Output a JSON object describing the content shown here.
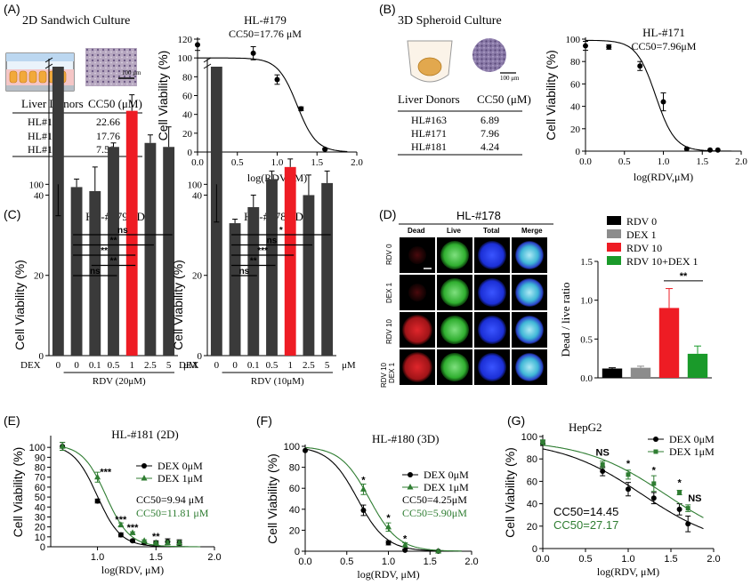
{
  "panel_labels": [
    "(A)",
    "(B)",
    "(C)",
    "(D)",
    "(E)",
    "(F)",
    "(G)"
  ],
  "panelA": {
    "title": "2D Sandwich Culture",
    "scale_label": "100 μm",
    "table": {
      "headers": [
        "Liver Donors",
        "CC50 (μM)"
      ],
      "rows": [
        [
          "HL#178",
          "22.66"
        ],
        [
          "HL#179",
          "17.76"
        ],
        [
          "HL#180",
          "7.50"
        ]
      ]
    }
  },
  "panelB": {
    "title": "3D Spheroid Culture",
    "scale_label": "100 μm",
    "table": {
      "headers": [
        "Liver Donors",
        "CC50 (μM)"
      ],
      "rows": [
        [
          "HL#163",
          "6.89"
        ],
        [
          "HL#171",
          "7.96"
        ],
        [
          "HL#181",
          "4.24"
        ]
      ]
    }
  },
  "panelD": {
    "title": "HL-#178",
    "col_headers": [
      "Dead",
      "Live",
      "Total",
      "Merge"
    ],
    "row_labels": [
      "RDV 0",
      "DEX 1",
      "RDV 10",
      "RDV 10\nDEX 1"
    ]
  },
  "chart_data": [
    {
      "id": "A",
      "type": "scatter",
      "title": "HL-#179",
      "subtitle": "CC50=17.76 μM",
      "xlabel": "log(RDV,μM)",
      "ylabel": "Cell Viability (%)",
      "xlim": [
        0,
        2
      ],
      "ylim": [
        0,
        120
      ],
      "xticks": [
        "0.0",
        "0.5",
        "1.0",
        "1.5",
        "2.0"
      ],
      "yticks": [
        "0",
        "20",
        "40",
        "60",
        "80",
        "100",
        "120"
      ],
      "points": [
        [
          0,
          114,
          6
        ],
        [
          0.7,
          105,
          7
        ],
        [
          1.0,
          77,
          5
        ],
        [
          1.3,
          46,
          2
        ],
        [
          1.6,
          3,
          1
        ]
      ],
      "fit": {
        "top": 100,
        "bottom": 0,
        "logec50": 1.249,
        "hill": 3.6
      },
      "colors": [
        "#000000"
      ]
    },
    {
      "id": "B",
      "type": "scatter",
      "title": "HL-#171",
      "subtitle": "CC50=7.96μM",
      "xlabel": "log(RDV,μM)",
      "ylabel": "Cell Viability (%)",
      "xlim": [
        0,
        2
      ],
      "ylim": [
        0,
        100
      ],
      "xticks": [
        "0.0",
        "0.5",
        "1.0",
        "1.5",
        "2.0"
      ],
      "yticks": [
        "0",
        "20",
        "40",
        "60",
        "80",
        "100"
      ],
      "points": [
        [
          0,
          94,
          4
        ],
        [
          0.3,
          93,
          2
        ],
        [
          0.7,
          76,
          4
        ],
        [
          1.0,
          44,
          8
        ],
        [
          1.3,
          2,
          0
        ],
        [
          1.6,
          1,
          0
        ],
        [
          1.7,
          1,
          0
        ]
      ],
      "fit": {
        "top": 99,
        "bottom": 0,
        "logec50": 0.901,
        "hill": 3.5
      },
      "colors": [
        "#000000"
      ]
    },
    {
      "id": "C1",
      "type": "bar",
      "title": "HL-#179 2D",
      "ylabel": "Cell Viability (%)",
      "xlabel": "RDV (20μM)",
      "categories": [
        "0",
        "0",
        "0.1",
        "0.5",
        "1",
        "2.5",
        "5"
      ],
      "values": [
        100,
        42,
        41,
        52,
        61,
        53,
        52
      ],
      "errors": [
        5,
        2,
        6,
        1,
        4,
        2,
        5
      ],
      "highlight_index": 4,
      "yticks": [
        "40",
        "20",
        "0",
        "100"
      ],
      "dex_label": "DEX",
      "unit_label": "μM",
      "significance": [
        {
          "from": 1,
          "to": 6,
          "label": "ns"
        },
        {
          "from": 1,
          "to": 5,
          "label": "**"
        },
        {
          "from": 1,
          "to": 4,
          "label": "**"
        },
        {
          "from": 2,
          "to": 4,
          "label": "**"
        },
        {
          "from": 1,
          "to": 3,
          "label": "ns"
        }
      ],
      "colors": [
        "#3a3a3a",
        "#ee1c24"
      ]
    },
    {
      "id": "C2",
      "type": "bar",
      "title": "HL-#178 3D",
      "ylabel": "Cell Viability (%)",
      "xlabel": "RDV (10μM)",
      "categories": [
        "0",
        "0",
        "0.1",
        "0.5",
        "1",
        "2.5",
        "5"
      ],
      "values": [
        100,
        33,
        37,
        44,
        47,
        40,
        43
      ],
      "errors": [
        6,
        1,
        3,
        2,
        2,
        5,
        3
      ],
      "highlight_index": 4,
      "yticks": [
        "40",
        "20",
        "0",
        "100"
      ],
      "dex_label": "DEX",
      "unit_label": "μM",
      "significance": [
        {
          "from": 1,
          "to": 6,
          "label": "*"
        },
        {
          "from": 1,
          "to": 5,
          "label": "ns"
        },
        {
          "from": 1,
          "to": 4,
          "label": "***"
        },
        {
          "from": 1,
          "to": 3,
          "label": "**"
        },
        {
          "from": 1,
          "to": 2,
          "label": "ns"
        }
      ],
      "colors": [
        "#3a3a3a",
        "#ee1c24"
      ]
    },
    {
      "id": "D",
      "type": "bar",
      "ylabel": "Dead / live ratio",
      "legend": [
        "RDV 0",
        "DEX 1",
        "RDV 10",
        "RDV 10+DEX 1"
      ],
      "values": [
        0.12,
        0.13,
        0.9,
        0.31
      ],
      "errors": [
        0.01,
        0.02,
        0.25,
        0.1
      ],
      "ylim": [
        0,
        1.5
      ],
      "yticks": [
        "0.0",
        "0.5",
        "1.0",
        "1.5"
      ],
      "significance": [
        {
          "from": 2,
          "to": 3,
          "label": "**"
        }
      ],
      "colors": [
        "#000000",
        "#8c8c8c",
        "#ee1c24",
        "#1a9a2a"
      ]
    },
    {
      "id": "E",
      "type": "scatter",
      "title": "HL-#181 (2D)",
      "xlabel": "log(RDV, μM)",
      "ylabel": "Cell Viability (%)",
      "xlim": [
        0.6,
        2.0
      ],
      "ylim": [
        0,
        110
      ],
      "xticks": [
        "1.0",
        "1.5",
        "2.0"
      ],
      "yticks": [
        "0",
        "10",
        "20",
        "30",
        "40",
        "50",
        "60",
        "70",
        "80",
        "90",
        "100"
      ],
      "series": [
        {
          "name": "DEX 0μM",
          "marker": "circle",
          "points": [
            [
              0.7,
              101,
              4
            ],
            [
              1.0,
              46,
              2
            ],
            [
              1.2,
              12,
              2
            ],
            [
              1.3,
              6,
              1
            ],
            [
              1.4,
              4,
              1
            ],
            [
              1.5,
              4,
              2
            ],
            [
              1.6,
              5,
              3
            ],
            [
              1.7,
              4,
              3
            ]
          ],
          "fit": {
            "top": 103,
            "bottom": 0,
            "logec50": 0.997,
            "hill": 4.3
          }
        },
        {
          "name": "DEX 1μM",
          "marker": "triangle",
          "points": [
            [
              0.7,
              101,
              4
            ],
            [
              1.0,
              70,
              5
            ],
            [
              1.2,
              22,
              2
            ],
            [
              1.3,
              14,
              1
            ],
            [
              1.4,
              6,
              1
            ],
            [
              1.5,
              4,
              1
            ],
            [
              1.6,
              4,
              2
            ],
            [
              1.7,
              4,
              2
            ]
          ],
          "fit": {
            "top": 103,
            "bottom": 0,
            "logec50": 1.072,
            "hill": 4.3
          }
        }
      ],
      "annotations": [
        {
          "x": 1.07,
          "y": 72,
          "text": "***"
        },
        {
          "x": 1.2,
          "y": 24,
          "text": "***"
        },
        {
          "x": 1.3,
          "y": 16,
          "text": "***"
        },
        {
          "x": 1.5,
          "y": 7,
          "text": "**"
        }
      ],
      "cc50_text": [
        "CC50=9.94 μM",
        "CC50=11.81 μM"
      ],
      "colors": [
        "#000000",
        "#2f7d32"
      ]
    },
    {
      "id": "F",
      "type": "scatter",
      "title": "HL-#180 (3D)",
      "xlabel": "log(RDV, μM)",
      "ylabel": "Cell Viability (%)",
      "xlim": [
        0,
        2.0
      ],
      "ylim": [
        0,
        100
      ],
      "xticks": [
        "0.0",
        "0.5",
        "1.0",
        "1.5",
        "2.0"
      ],
      "yticks": [
        "0",
        "20",
        "40",
        "60",
        "80",
        "100"
      ],
      "series": [
        {
          "name": "DEX 0μM",
          "marker": "circle",
          "points": [
            [
              0.7,
              39,
              5
            ],
            [
              1.0,
              8,
              2
            ],
            [
              1.2,
              1,
              1
            ],
            [
              1.6,
              0,
              0
            ]
          ],
          "fit": {
            "top": 100,
            "bottom": 0,
            "logec50": 0.628,
            "hill": 2.5
          }
        },
        {
          "name": "DEX 1μM",
          "marker": "triangle",
          "points": [
            [
              0.7,
              59,
              5
            ],
            [
              1.0,
              23,
              4
            ],
            [
              1.2,
              6,
              2
            ],
            [
              1.6,
              0,
              0
            ]
          ],
          "fit": {
            "top": 100,
            "bottom": 0,
            "logec50": 0.771,
            "hill": 2.5
          }
        }
      ],
      "start_point": [
        0,
        96,
        3
      ],
      "annotations": [
        {
          "x": 0.7,
          "y": 65,
          "text": "*"
        },
        {
          "x": 1.0,
          "y": 29,
          "text": "*"
        },
        {
          "x": 1.2,
          "y": 9,
          "text": "*"
        }
      ],
      "cc50_text": [
        "CC50=4.25μM",
        "CC50=5.90μM"
      ],
      "colors": [
        "#000000",
        "#2f7d32"
      ]
    },
    {
      "id": "G",
      "type": "scatter",
      "title": "HepG2",
      "xlabel": "log(RDV, μM)",
      "ylabel": "Cell Viability (%)",
      "xlim": [
        0,
        2.0
      ],
      "ylim": [
        0,
        100
      ],
      "xticks": [
        "0.0",
        "0.5",
        "1.0",
        "1.5",
        "2.0"
      ],
      "yticks": [
        "0",
        "20",
        "40",
        "60",
        "80",
        "100"
      ],
      "series": [
        {
          "name": "DEX 0μM",
          "marker": "circle",
          "points": [
            [
              0,
              94,
              2
            ],
            [
              0.7,
              69,
              4
            ],
            [
              1.0,
              53,
              6
            ],
            [
              1.3,
              45,
              5
            ],
            [
              1.6,
              35,
              5
            ],
            [
              1.7,
              22,
              7
            ]
          ],
          "fit": {
            "top": 97,
            "bottom": 0,
            "logec50": 1.16,
            "hill": 0.9
          }
        },
        {
          "name": "DEX 1μM",
          "marker": "square",
          "points": [
            [
              0,
              95,
              2
            ],
            [
              0.7,
              75,
              3
            ],
            [
              1.0,
              66,
              4
            ],
            [
              1.3,
              58,
              7
            ],
            [
              1.6,
              50,
              2
            ],
            [
              1.7,
              36,
              3
            ]
          ],
          "fit": {
            "top": 97,
            "bottom": 0,
            "logec50": 1.434,
            "hill": 0.9
          }
        }
      ],
      "annotations": [
        {
          "x": 0.7,
          "y": 83,
          "text": "NS"
        },
        {
          "x": 1.0,
          "y": 73,
          "text": "*"
        },
        {
          "x": 1.3,
          "y": 67,
          "text": "*"
        },
        {
          "x": 1.6,
          "y": 56,
          "text": "*"
        },
        {
          "x": 1.78,
          "y": 42,
          "text": "NS"
        }
      ],
      "cc50_text": [
        "CC50=14.45",
        "CC50=27.17"
      ],
      "colors": [
        "#000000",
        "#2f7d32"
      ]
    }
  ]
}
